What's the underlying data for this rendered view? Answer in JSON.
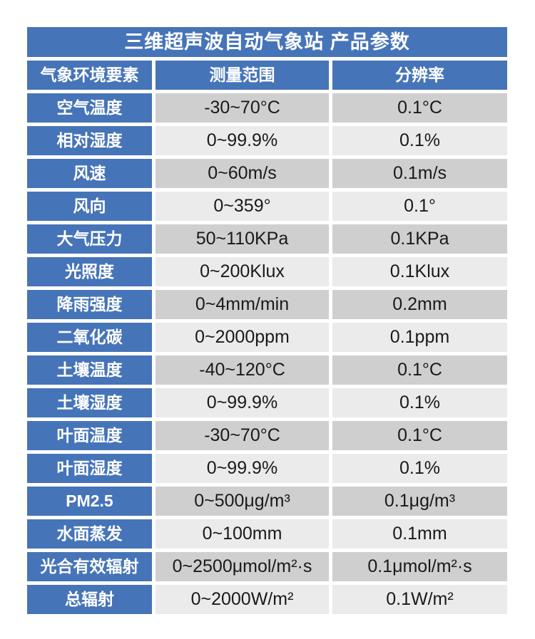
{
  "colors": {
    "accent_blue": "#4674b8",
    "row_dark_gray": "#d0cfcf",
    "row_light_gray": "#ebebeb",
    "text_on_blue": "#ffffff",
    "text_on_gray": "#1a1a1a",
    "page_background": "#ffffff"
  },
  "table": {
    "title": "三维超声波自动气象站 产品参数",
    "columns": [
      "气象环境要素",
      "测量范围",
      "分辨率"
    ],
    "rows": [
      {
        "param": "空气温度",
        "range": "-30~70°C",
        "resolution": "0.1°C"
      },
      {
        "param": "相对湿度",
        "range": "0~99.9%",
        "resolution": "0.1%"
      },
      {
        "param": "风速",
        "range": "0~60m/s",
        "resolution": "0.1m/s"
      },
      {
        "param": "风向",
        "range": "0~359°",
        "resolution": "0.1°"
      },
      {
        "param": "大气压力",
        "range": "50~110KPa",
        "resolution": "0.1KPa"
      },
      {
        "param": "光照度",
        "range": "0~200Klux",
        "resolution": "0.1Klux"
      },
      {
        "param": "降雨强度",
        "range": "0~4mm/min",
        "resolution": "0.2mm"
      },
      {
        "param": "二氧化碳",
        "range": "0~2000ppm",
        "resolution": "0.1ppm"
      },
      {
        "param": "土壤温度",
        "range": "-40~120°C",
        "resolution": "0.1°C"
      },
      {
        "param": "土壤湿度",
        "range": "0~99.9%",
        "resolution": "0.1%"
      },
      {
        "param": "叶面温度",
        "range": "-30~70°C",
        "resolution": "0.1°C"
      },
      {
        "param": "叶面湿度",
        "range": "0~99.9%",
        "resolution": "0.1%"
      },
      {
        "param": "PM2.5",
        "range": "0~500μg/m³",
        "resolution": "0.1μg/m³"
      },
      {
        "param": "水面蒸发",
        "range": "0~100mm",
        "resolution": "0.1mm"
      },
      {
        "param": "光合有效辐射",
        "range": "0~2500μmol/m²·s",
        "resolution": "0.1μmol/m²·s"
      },
      {
        "param": "总辐射",
        "range": "0~2000W/m²",
        "resolution": "0.1W/m²"
      }
    ]
  }
}
